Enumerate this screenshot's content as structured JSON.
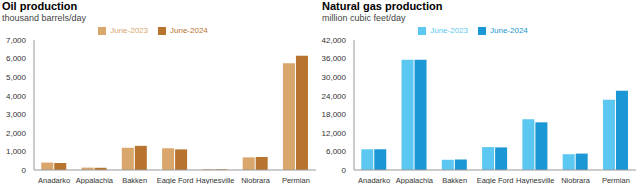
{
  "chart_data": [
    {
      "type": "bar",
      "title": "Oil production",
      "subtitle": "thousand barrels/day",
      "categories": [
        "Anadarko",
        "Appalachia",
        "Bakken",
        "Eagle Ford",
        "Haynesville",
        "Niobrara",
        "Permian"
      ],
      "series": [
        {
          "name": "June-2023",
          "color": "#d9a66b",
          "values": [
            400,
            130,
            1200,
            1170,
            40,
            680,
            5750
          ]
        },
        {
          "name": "June-2024",
          "color": "#b8732e",
          "values": [
            380,
            120,
            1300,
            1110,
            35,
            700,
            6150
          ]
        }
      ],
      "ylim": [
        0,
        7000
      ],
      "yticks": [
        0,
        {
          "value": 1000,
          "label": "1,000"
        },
        {
          "value": 2000,
          "label": "2,000"
        },
        {
          "value": 3000,
          "label": "3,000"
        },
        {
          "value": 4000,
          "label": "4,000"
        },
        {
          "value": 5000,
          "label": "5,000"
        },
        {
          "value": 6000,
          "label": "6,000"
        },
        {
          "value": 7000,
          "label": "7,000"
        }
      ],
      "grid": false,
      "legend": "top"
    },
    {
      "type": "bar",
      "title": "Natural gas production",
      "subtitle": "million cubic feet/day",
      "categories": [
        "Anadarko",
        "Appalachia",
        "Bakken",
        "Eagle Ford",
        "Haynesville",
        "Niobrara",
        "Permian"
      ],
      "series": [
        {
          "name": "June-2023",
          "color": "#5cc8f2",
          "values": [
            6700,
            35600,
            3300,
            7400,
            16400,
            5100,
            22700
          ]
        },
        {
          "name": "June-2024",
          "color": "#1a97d4",
          "values": [
            6700,
            35600,
            3400,
            7300,
            15400,
            5300,
            25600
          ]
        }
      ],
      "ylim": [
        0,
        42000
      ],
      "yticks": [
        0,
        {
          "value": 6000,
          "label": "6,000"
        },
        {
          "value": 12000,
          "label": "12,000"
        },
        {
          "value": 18000,
          "label": "18,000"
        },
        {
          "value": 24000,
          "label": "24,000"
        },
        {
          "value": 30000,
          "label": "30,000"
        },
        {
          "value": 36000,
          "label": "36,000"
        },
        {
          "value": 42000,
          "label": "42,000"
        }
      ],
      "grid": false,
      "legend": "top"
    }
  ]
}
